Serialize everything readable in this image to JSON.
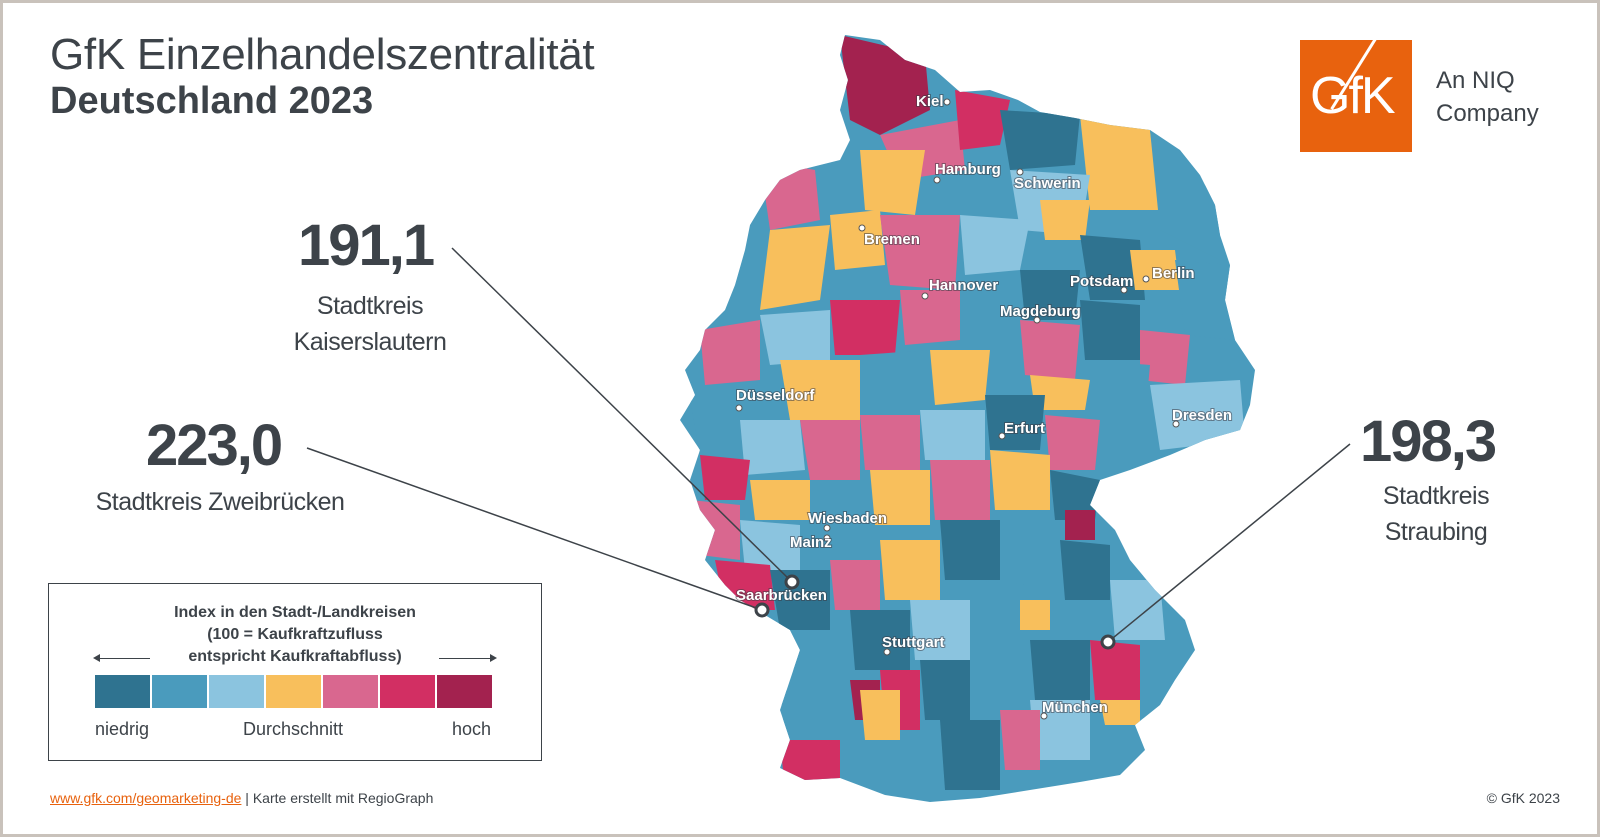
{
  "title": {
    "line1": "GfK Einzelhandelszentralität",
    "line2": "Deutschland 2023"
  },
  "logo": {
    "mark": "GfK",
    "tagline_line1": "An NIQ",
    "tagline_line2": "Company",
    "color": "#e8620e"
  },
  "callouts": [
    {
      "value": "191,1",
      "label_line1": "Stadtkreis",
      "label_line2": "Kaiserslautern"
    },
    {
      "value": "223,0",
      "label_line1": "Stadtkreis Zweibrücken"
    },
    {
      "value": "198,3",
      "label_line1": "Stadtkreis",
      "label_line2": "Straubing"
    }
  ],
  "cities": [
    "Kiel",
    "Hamburg",
    "Schwerin",
    "Bremen",
    "Hannover",
    "Potsdam",
    "Berlin",
    "Magdeburg",
    "Düsseldorf",
    "Dresden",
    "Erfurt",
    "Wiesbaden",
    "Mainz",
    "Saarbrücken",
    "Stuttgart",
    "München"
  ],
  "legend": {
    "title_line1": "Index in den Stadt-/Landkreisen",
    "title_line2": "(100 = Kaufkraftzufluss",
    "title_line3": "entspricht Kaufkraftabfluss)",
    "low": "niedrig",
    "mid": "Durchschnitt",
    "high": "hoch",
    "colors": [
      "#2f7390",
      "#4a9bbd",
      "#8bc4df",
      "#f8bf5c",
      "#d9678f",
      "#d22f63",
      "#a3224f"
    ]
  },
  "footer": {
    "link": "www.gfk.com/geomarketing-de",
    "text": " | Karte erstellt mit RegioGraph",
    "copyright": "© GfK 2023"
  }
}
